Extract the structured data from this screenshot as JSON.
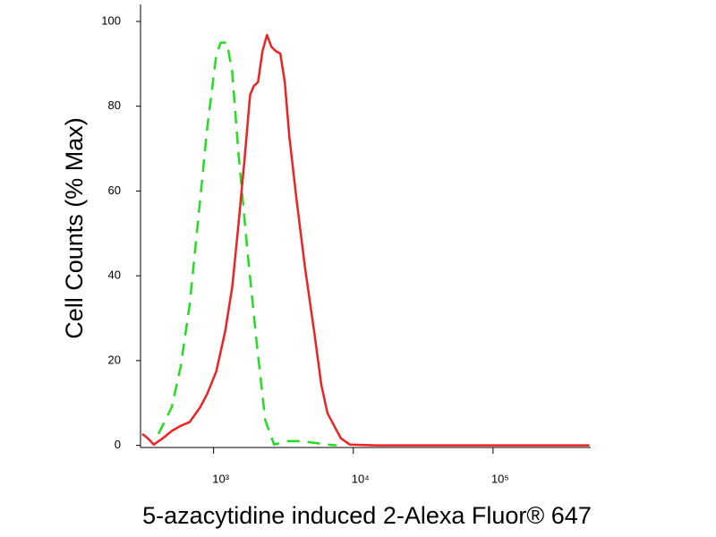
{
  "chart_data": {
    "type": "line",
    "y_label": "Cell Counts (% Max)",
    "x_label": "5-azacytidine induced 2-Alexa Fluor® 647",
    "log_x": true,
    "xlim": [
      300,
      500000
    ],
    "xticks": [
      {
        "value": 1000,
        "label": "10³"
      },
      {
        "value": 10000,
        "label": "10⁴"
      },
      {
        "value": 100000,
        "label": "10⁵"
      }
    ],
    "ylim": [
      -0.5,
      104
    ],
    "yticks": [
      0,
      20,
      40,
      60,
      80,
      100
    ],
    "series": [
      {
        "color": "#22dd22",
        "style": "dashed",
        "x": [
          403,
          502,
          581,
          673,
          780,
          902,
          1045,
          1125,
          1247,
          1361,
          1507,
          1746,
          2022,
          2341,
          2711,
          3380,
          4208,
          5246,
          6531,
          7568
        ],
        "values": [
          2.7,
          9,
          18.5,
          33,
          54,
          75,
          92,
          95,
          95,
          88,
          69,
          46,
          25,
          6,
          0.2,
          1,
          1,
          0.6,
          0.2,
          0
        ]
      },
      {
        "color": "#ee2222",
        "style": "solid",
        "x": [
          309,
          338,
          374,
          433,
          502,
          581,
          673,
          724,
          802,
          902,
          1045,
          1210,
          1361,
          1507,
          1671,
          1824,
          1935,
          2081,
          2239,
          2411,
          2594,
          2792,
          3004,
          3233,
          3479,
          3910,
          4529,
          5246,
          5899,
          6531,
          7244,
          8145,
          9432,
          14650,
          47300,
          490000
        ],
        "values": [
          2.7,
          1.7,
          0.2,
          1.7,
          3.4,
          4.6,
          5.5,
          6.9,
          9,
          12.2,
          17.4,
          26.9,
          37.4,
          52,
          67.9,
          82.6,
          84.7,
          85.7,
          93,
          96.8,
          94,
          93,
          92.4,
          85.7,
          73,
          58.4,
          41.6,
          26.9,
          14.3,
          7.6,
          4.8,
          1.7,
          0.2,
          0,
          0,
          0
        ]
      }
    ]
  }
}
